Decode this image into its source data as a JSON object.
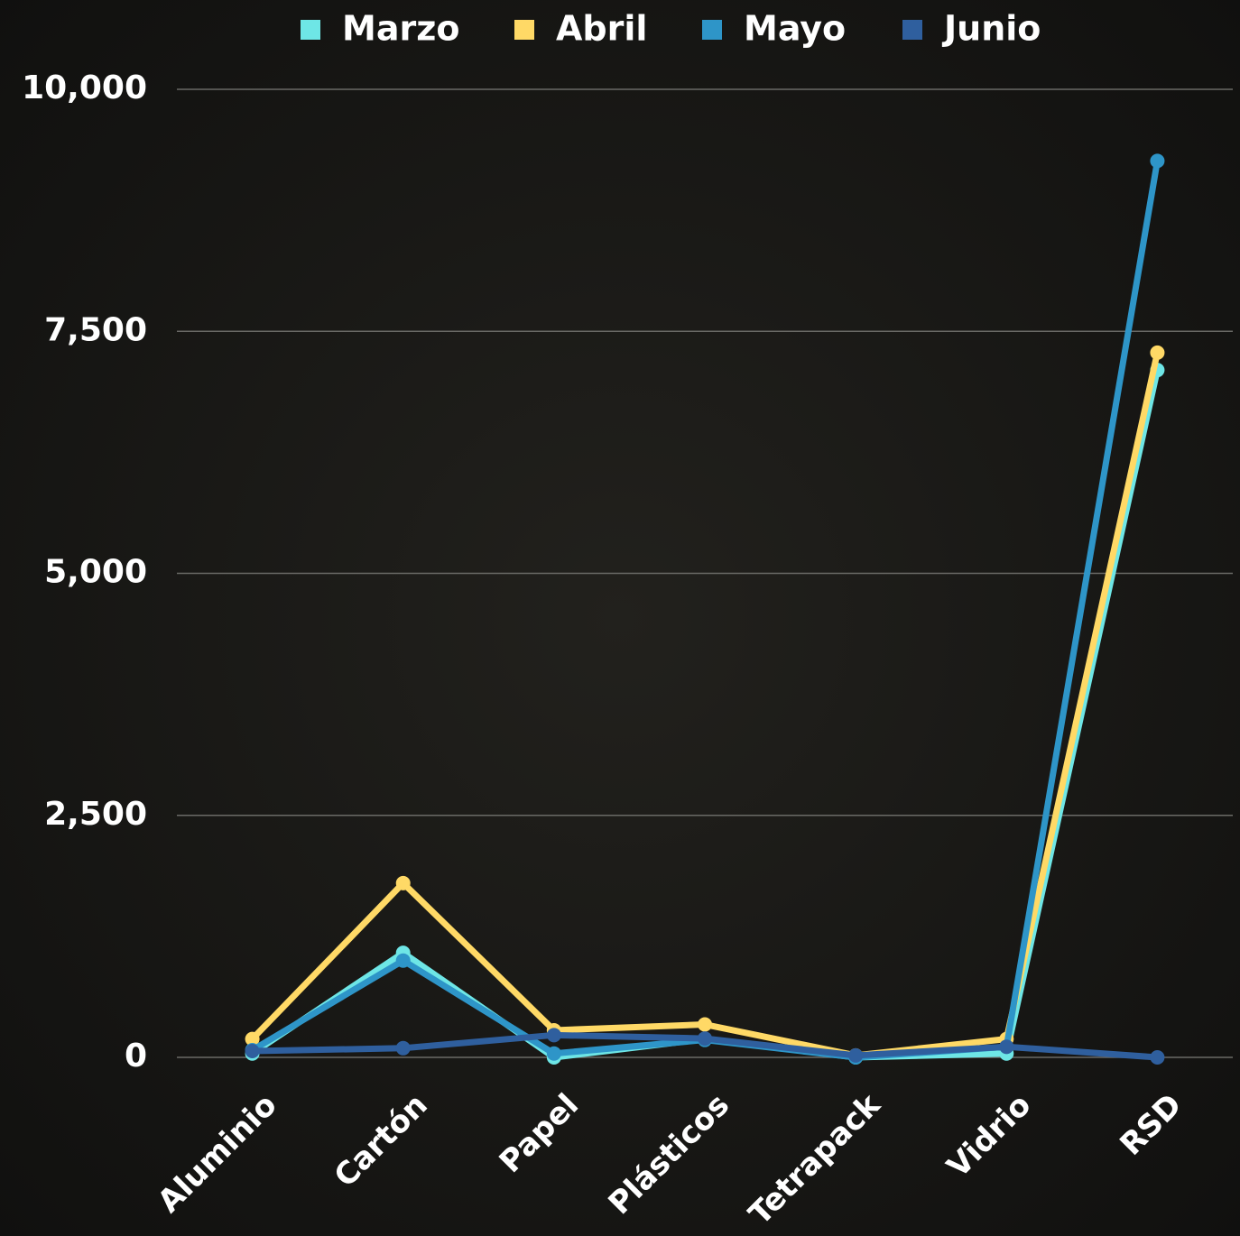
{
  "chart_data": {
    "type": "line",
    "categories": [
      "Aluminio",
      "Cartón",
      "Papel",
      "Plásticos",
      "Tetrapack",
      "Vidrio",
      "RSD"
    ],
    "series": [
      {
        "name": "Marzo",
        "color": "#6ee6e6",
        "values": [
          40,
          1080,
          0,
          190,
          0,
          40,
          7100
        ]
      },
      {
        "name": "Abril",
        "color": "#ffd966",
        "values": [
          190,
          1800,
          280,
          340,
          20,
          190,
          7280
        ]
      },
      {
        "name": "Mayo",
        "color": "#2e95c8",
        "values": [
          75,
          1000,
          40,
          180,
          0,
          110,
          9260
        ]
      },
      {
        "name": "Junio",
        "color": "#2f5f9e",
        "values": [
          65,
          95,
          230,
          195,
          20,
          110,
          0
        ]
      }
    ],
    "ylim": [
      0,
      10000
    ],
    "yticks": [
      0,
      {
        "value": 2500,
        "label": "2,500"
      },
      {
        "value": 5000,
        "label": "5,000"
      },
      {
        "value": 7500,
        "label": "7,500"
      },
      {
        "value": 10000,
        "label": "10,000"
      }
    ],
    "grid": true
  }
}
